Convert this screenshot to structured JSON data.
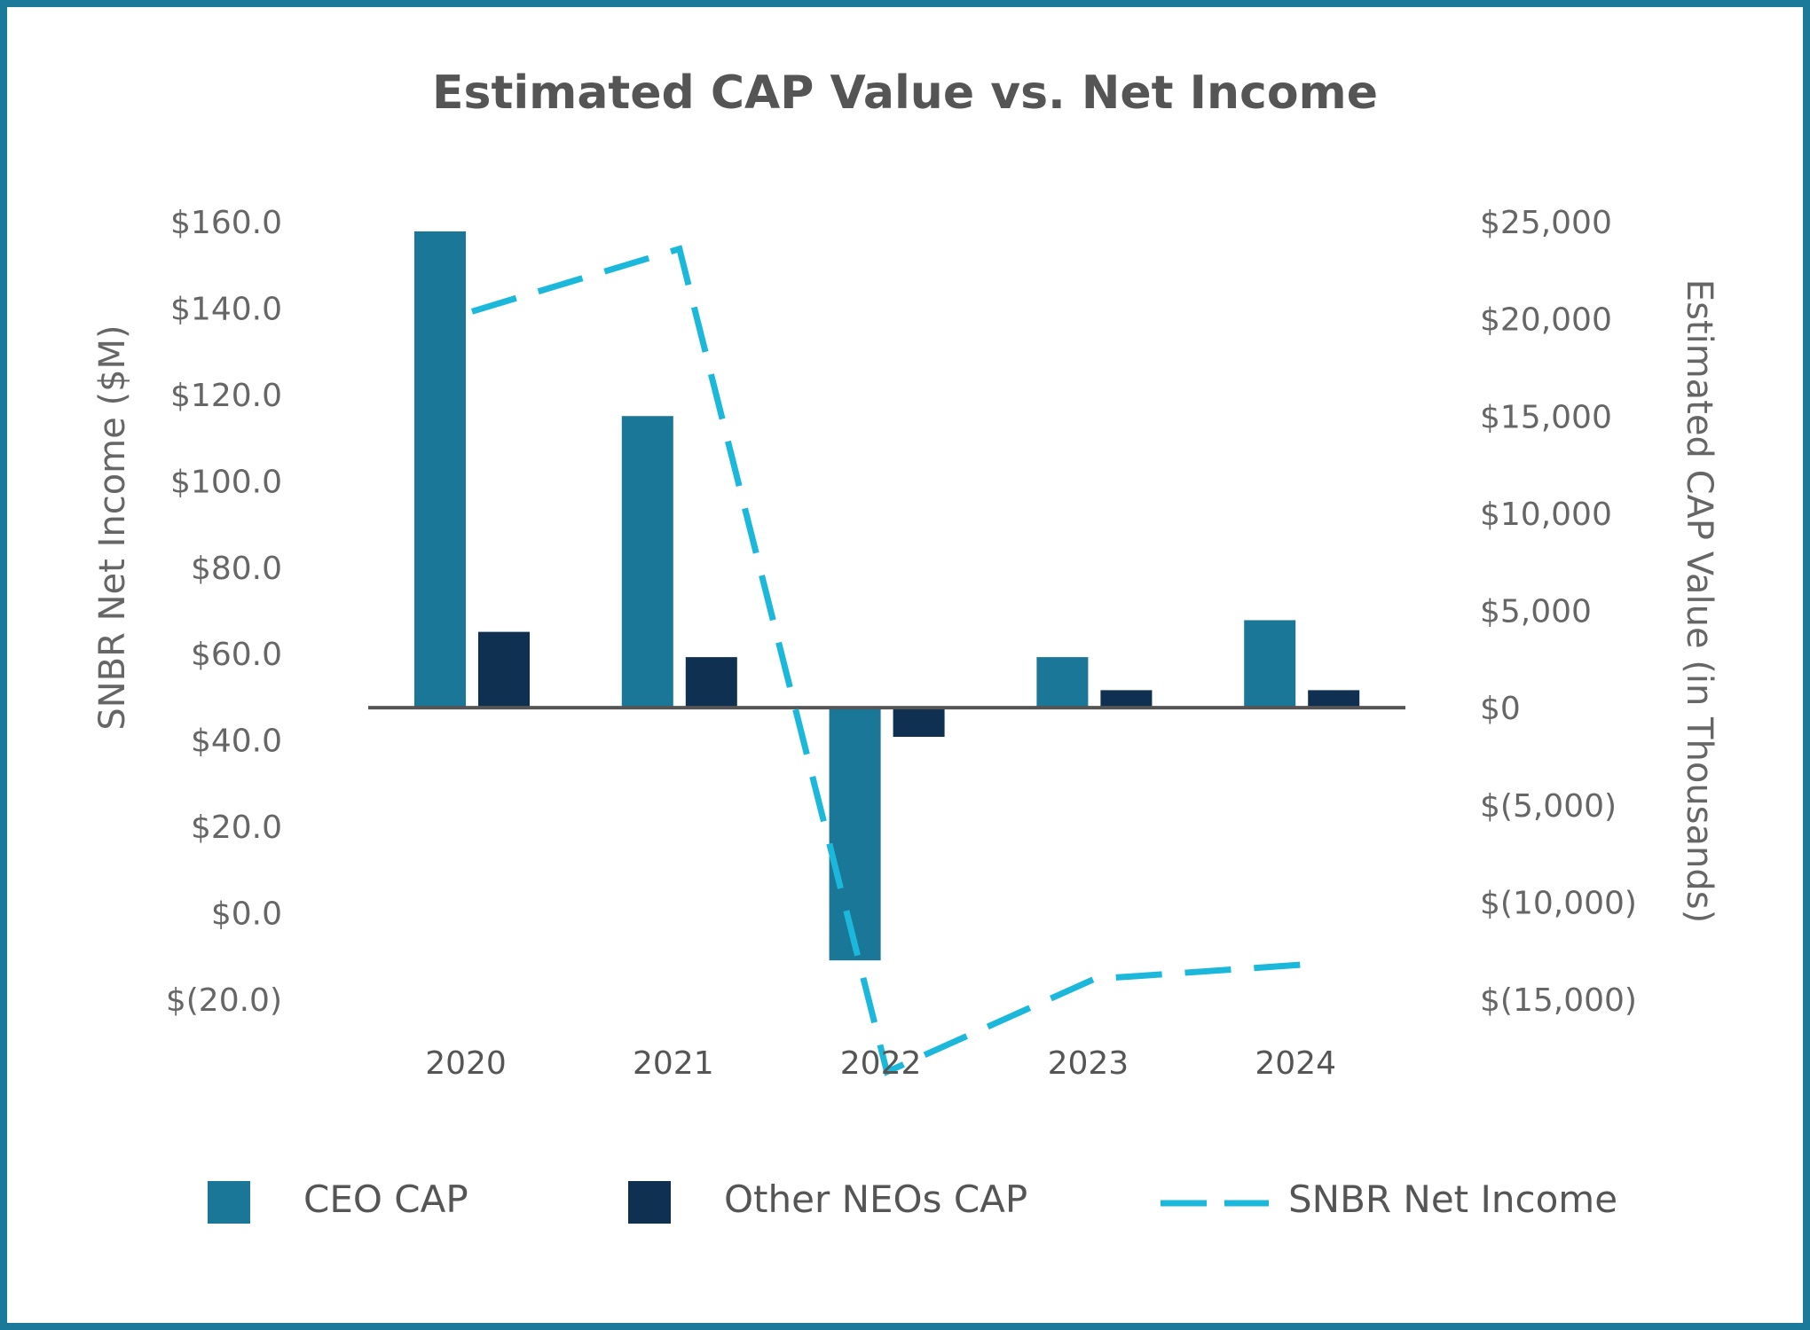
{
  "chart_data": {
    "type": "bar",
    "title": "Estimated CAP Value vs. Net Income",
    "categories": [
      "2020",
      "2021",
      "2022",
      "2023",
      "2024"
    ],
    "left_axis": {
      "label": "SNBR Net Income ($M)",
      "range": [
        -20,
        160
      ],
      "tick_values": [
        160,
        140,
        120,
        100,
        80,
        60,
        40,
        20,
        0,
        -20
      ],
      "tick_labels": [
        "$160.0",
        "$140.0",
        "$120.0",
        "$100.0",
        "$80.0",
        "$60.0",
        "$40.0",
        "$20.0",
        "$0.0",
        "$(20.0)"
      ]
    },
    "right_axis": {
      "label": "Estimated CAP Value (in Thousands)",
      "range": [
        -15000,
        25000
      ],
      "tick_values": [
        25000,
        20000,
        15000,
        10000,
        5000,
        0,
        -5000,
        -10000,
        -15000
      ],
      "tick_labels": [
        "$25,000",
        "$20,000",
        "$15,000",
        "$10,000",
        "$5,000",
        "$0",
        "$(5,000)",
        "$(10,000)",
        "$(15,000)"
      ]
    },
    "series": [
      {
        "name": "CEO CAP",
        "type": "bar",
        "axis": "right",
        "color": "#1a7797",
        "values": [
          24500,
          15000,
          -13000,
          2600,
          4500
        ]
      },
      {
        "name": "Other NEOs CAP",
        "type": "bar",
        "axis": "right",
        "color": "#0f3050",
        "values": [
          3900,
          2600,
          -1500,
          900,
          900
        ]
      },
      {
        "name": "SNBR Net Income",
        "type": "line",
        "style": "dashed",
        "axis": "left",
        "color": "#1bb8dc",
        "values": [
          139.2,
          153.7,
          -36.8,
          -15.3,
          -12.0
        ]
      }
    ],
    "legend_position": "bottom"
  }
}
